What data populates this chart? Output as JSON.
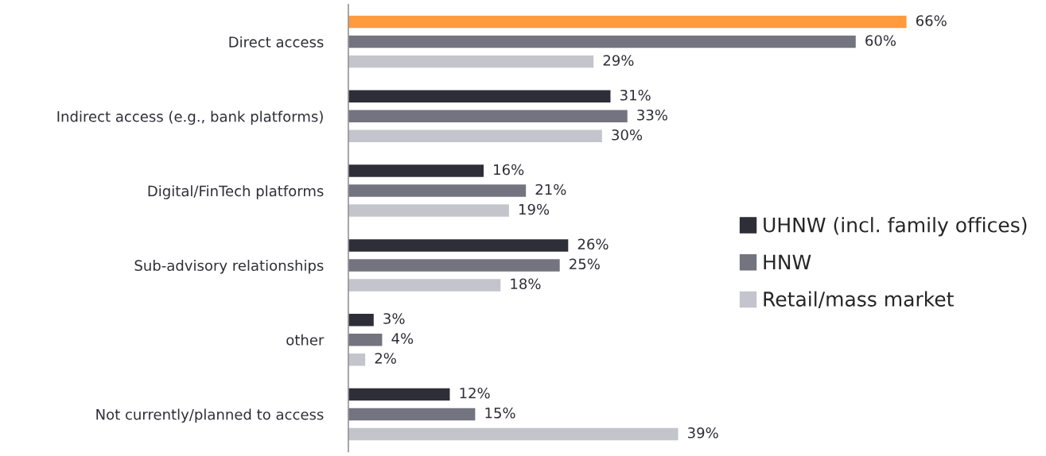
{
  "chart_data": {
    "type": "bar",
    "orientation": "horizontal",
    "categories": [
      "Direct access",
      "Indirect access (e.g., bank platforms)",
      "Digital/FinTech platforms",
      "Sub-advisory relationships",
      "other",
      "Not currently/planned to access"
    ],
    "series": [
      {
        "name": "UHNW (incl. family offices)",
        "color": "#2e2e38",
        "colors": [
          "#ff9a3d",
          "#2e2e38",
          "#2e2e38",
          "#2e2e38",
          "#2e2e38",
          "#2e2e38"
        ],
        "values": [
          66,
          31,
          16,
          26,
          3,
          12
        ],
        "value_labels": [
          "66%",
          "31%",
          "16%",
          "26%",
          "3%",
          "12%"
        ]
      },
      {
        "name": "HNW",
        "color": "#747480",
        "values": [
          60,
          33,
          21,
          25,
          4,
          15
        ],
        "value_labels": [
          "60%",
          "33%",
          "21%",
          "25%",
          "4%",
          "15%"
        ]
      },
      {
        "name": "Retail/mass market",
        "color": "#c4c4cd",
        "values": [
          29,
          30,
          19,
          18,
          2,
          39
        ],
        "value_labels": [
          "29%",
          "30%",
          "19%",
          "18%",
          "2%",
          "39%"
        ]
      }
    ],
    "legend": "right",
    "grid": false
  }
}
